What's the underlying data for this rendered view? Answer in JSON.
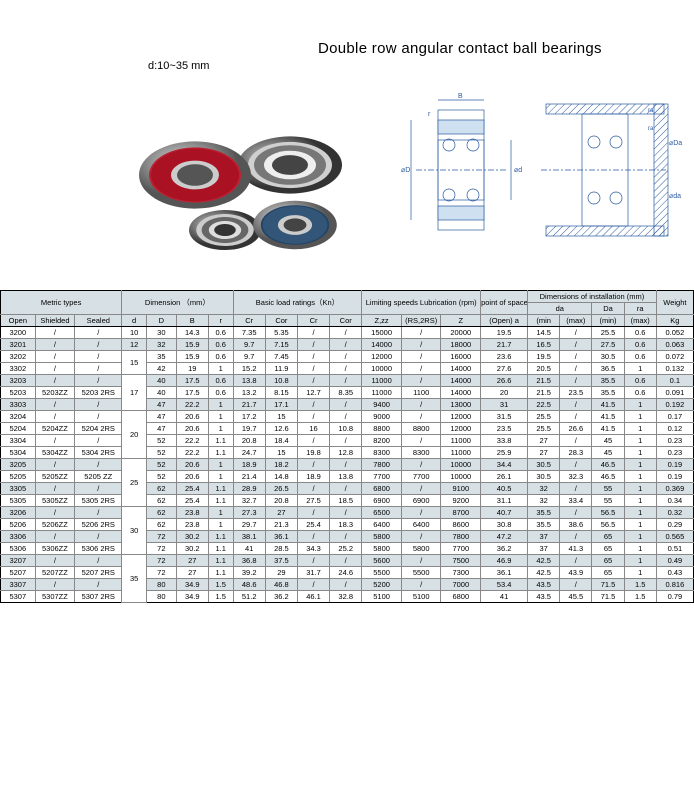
{
  "header": {
    "dimension_label": "d:10~35 mm",
    "title": "Double row angular contact ball bearings"
  },
  "table": {
    "group_headers": [
      "Metric types",
      "Dimension （mm）",
      "Basic load ratings（Kn）",
      "Limiting speeds Lubrication (rpm)",
      "point of space（mm）",
      "Dimensions of installation (mm)",
      "Weight"
    ],
    "sub_headers_inst": [
      "da",
      "Da",
      "ra"
    ],
    "col_headers": [
      "Open",
      "Shielded",
      "Sealed",
      "d",
      "D",
      "B",
      "r",
      "Cr",
      "Cor",
      "Cr",
      "Cor",
      "Z,zz",
      "(RS,2RS)",
      "Z",
      "(Open) a",
      "(min",
      "(max)",
      "(min)",
      "(max)",
      "Kg"
    ],
    "rows": [
      {
        "shaded": false,
        "cells": [
          "3200",
          "/",
          "/",
          "10",
          "30",
          "14.3",
          "0.6",
          "7.35",
          "5.35",
          "/",
          "/",
          "15000",
          "/",
          "20000",
          "19.5",
          "14.5",
          "/",
          "25.5",
          "0.6",
          "0.052"
        ]
      },
      {
        "shaded": true,
        "cells": [
          "3201",
          "/",
          "/",
          "12",
          "32",
          "15.9",
          "0.6",
          "9.7",
          "7.15",
          "/",
          "/",
          "14000",
          "/",
          "18000",
          "21.7",
          "16.5",
          "/",
          "27.5",
          "0.6",
          "0.063"
        ]
      },
      {
        "shaded": false,
        "cells": [
          "3202",
          "/",
          "/",
          "",
          "35",
          "15.9",
          "0.6",
          "9.7",
          "7.45",
          "/",
          "/",
          "12000",
          "/",
          "16000",
          "23.6",
          "19.5",
          "/",
          "30.5",
          "0.6",
          "0.072"
        ],
        "d": "15",
        "drows": 2
      },
      {
        "shaded": false,
        "cells": [
          "3302",
          "/",
          "/",
          "",
          "42",
          "19",
          "1",
          "15.2",
          "11.9",
          "/",
          "/",
          "10000",
          "/",
          "14000",
          "27.6",
          "20.5",
          "/",
          "36.5",
          "1",
          "0.132"
        ]
      },
      {
        "shaded": true,
        "cells": [
          "3203",
          "/",
          "/",
          "",
          "40",
          "17.5",
          "0.6",
          "13.8",
          "10.8",
          "/",
          "/",
          "11000",
          "/",
          "14000",
          "26.6",
          "21.5",
          "/",
          "35.5",
          "0.6",
          "0.1"
        ],
        "d": "17",
        "drows": 3
      },
      {
        "shaded": false,
        "cells": [
          "5203",
          "5203ZZ",
          "5203 2RS",
          "",
          "40",
          "17.5",
          "0.6",
          "13.2",
          "8.15",
          "12.7",
          "8.35",
          "11000",
          "1100",
          "14000",
          "20",
          "21.5",
          "23.5",
          "35.5",
          "0.6",
          "0.091"
        ]
      },
      {
        "shaded": true,
        "cells": [
          "3303",
          "/",
          "/",
          "",
          "47",
          "22.2",
          "1",
          "21.7",
          "17.1",
          "/",
          "/",
          "9400",
          "/",
          "13000",
          "31",
          "22.5",
          "/",
          "41.5",
          "1",
          "0.192"
        ]
      },
      {
        "shaded": false,
        "cells": [
          "3204",
          "/",
          "/",
          "",
          "47",
          "20.6",
          "1",
          "17.2",
          "15",
          "/",
          "/",
          "9000",
          "/",
          "12000",
          "31.5",
          "25.5",
          "/",
          "41.5",
          "1",
          "0.17"
        ],
        "d": "20",
        "drows": 4
      },
      {
        "shaded": false,
        "cells": [
          "5204",
          "5204ZZ",
          "5204 2RS",
          "",
          "47",
          "20.6",
          "1",
          "19.7",
          "12.6",
          "16",
          "10.8",
          "8800",
          "8800",
          "12000",
          "23.5",
          "25.5",
          "26.6",
          "41.5",
          "1",
          "0.12"
        ]
      },
      {
        "shaded": false,
        "cells": [
          "3304",
          "/",
          "/",
          "",
          "52",
          "22.2",
          "1.1",
          "20.8",
          "18.4",
          "/",
          "/",
          "8200",
          "/",
          "11000",
          "33.8",
          "27",
          "/",
          "45",
          "1",
          "0.23"
        ]
      },
      {
        "shaded": false,
        "cells": [
          "5304",
          "5304ZZ",
          "5304 2RS",
          "",
          "52",
          "22.2",
          "1.1",
          "24.7",
          "15",
          "19.8",
          "12.8",
          "8300",
          "8300",
          "11000",
          "25.9",
          "27",
          "28.3",
          "45",
          "1",
          "0.23"
        ]
      },
      {
        "shaded": true,
        "cells": [
          "3205",
          "/",
          "/",
          "",
          "52",
          "20.6",
          "1",
          "18.9",
          "18.2",
          "/",
          "/",
          "7800",
          "/",
          "10000",
          "34.4",
          "30.5",
          "/",
          "46.5",
          "1",
          "0.19"
        ],
        "d": "25",
        "drows": 4
      },
      {
        "shaded": false,
        "cells": [
          "5205",
          "5205ZZ",
          "5205 ZZ",
          "",
          "52",
          "20.6",
          "1",
          "21.4",
          "14.8",
          "18.9",
          "13.8",
          "7700",
          "7700",
          "10000",
          "26.1",
          "30.5",
          "32.3",
          "46.5",
          "1",
          "0.19"
        ]
      },
      {
        "shaded": true,
        "cells": [
          "3305",
          "/",
          "/",
          "",
          "62",
          "25.4",
          "1.1",
          "28.9",
          "26.5",
          "/",
          "/",
          "6800",
          "/",
          "9100",
          "40.5",
          "32",
          "/",
          "55",
          "1",
          "0.369"
        ]
      },
      {
        "shaded": false,
        "cells": [
          "5305",
          "5305ZZ",
          "5305 2RS",
          "",
          "62",
          "25.4",
          "1.1",
          "32.7",
          "20.8",
          "27.5",
          "18.5",
          "6900",
          "6900",
          "9200",
          "31.1",
          "32",
          "33.4",
          "55",
          "1",
          "0.34"
        ]
      },
      {
        "shaded": true,
        "cells": [
          "3206",
          "/",
          "/",
          "",
          "62",
          "23.8",
          "1",
          "27.3",
          "27",
          "/",
          "/",
          "6500",
          "/",
          "8700",
          "40.7",
          "35.5",
          "/",
          "56.5",
          "1",
          "0.32"
        ],
        "d": "30",
        "drows": 4
      },
      {
        "shaded": false,
        "cells": [
          "5206",
          "5206ZZ",
          "5206 2RS",
          "",
          "62",
          "23.8",
          "1",
          "29.7",
          "21.3",
          "25.4",
          "18.3",
          "6400",
          "6400",
          "8600",
          "30.8",
          "35.5",
          "38.6",
          "56.5",
          "1",
          "0.29"
        ]
      },
      {
        "shaded": true,
        "cells": [
          "3306",
          "/",
          "/",
          "",
          "72",
          "30.2",
          "1.1",
          "38.1",
          "36.1",
          "/",
          "/",
          "5800",
          "/",
          "7800",
          "47.2",
          "37",
          "/",
          "65",
          "1",
          "0.565"
        ]
      },
      {
        "shaded": false,
        "cells": [
          "5306",
          "5306ZZ",
          "5306 2RS",
          "",
          "72",
          "30.2",
          "1.1",
          "41",
          "28.5",
          "34.3",
          "25.2",
          "5800",
          "5800",
          "7700",
          "36.2",
          "37",
          "41.3",
          "65",
          "1",
          "0.51"
        ]
      },
      {
        "shaded": true,
        "cells": [
          "3207",
          "/",
          "/",
          "",
          "72",
          "27",
          "1.1",
          "36.8",
          "37.5",
          "/",
          "/",
          "5600",
          "/",
          "7500",
          "46.9",
          "42.5",
          "/",
          "65",
          "1",
          "0.49"
        ],
        "d": "35",
        "drows": 4
      },
      {
        "shaded": false,
        "cells": [
          "5207",
          "5207ZZ",
          "5207 2RS",
          "",
          "72",
          "27",
          "1.1",
          "39.2",
          "29",
          "31.7",
          "24.6",
          "5500",
          "5500",
          "7300",
          "36.1",
          "42.5",
          "43.9",
          "65",
          "1",
          "0.43"
        ]
      },
      {
        "shaded": true,
        "cells": [
          "3307",
          "/",
          "/",
          "",
          "80",
          "34.9",
          "1.5",
          "48.6",
          "46.8",
          "/",
          "/",
          "5200",
          "/",
          "7000",
          "53.4",
          "43.5",
          "/",
          "71.5",
          "1.5",
          "0.816"
        ]
      },
      {
        "shaded": false,
        "cells": [
          "5307",
          "5307ZZ",
          "5307 2RS",
          "",
          "80",
          "34.9",
          "1.5",
          "51.2",
          "36.2",
          "46.1",
          "32.8",
          "5100",
          "5100",
          "6800",
          "41",
          "43.5",
          "45.5",
          "71.5",
          "1.5",
          "0.79"
        ]
      }
    ]
  }
}
